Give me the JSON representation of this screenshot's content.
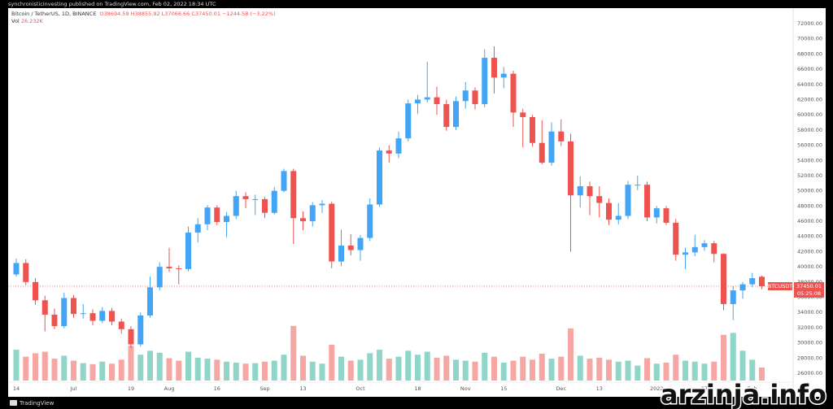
{
  "header": {
    "publisher": "synchronisticinvesting published on TradingView.com, Feb 02, 2022 18:34 UTC"
  },
  "chart_data": {
    "type": "candlestick",
    "symbol": "Bitcoin / TetherUS, 1D, BINANCE",
    "ohlc_prefixes": [
      "O",
      "H",
      "L",
      "C"
    ],
    "change": {
      "value": -1244.58,
      "label": "−1244.58"
    },
    "change_pct": {
      "value": -3.22,
      "label": "(−3.22%)"
    },
    "volume_name": "Vol",
    "volume_last": {
      "value": 26.232,
      "label": "26.232K"
    },
    "ticker": "BTCUSDT",
    "countdown": "05:25:08",
    "categories": [
      "14",
      null,
      null,
      null,
      null,
      null,
      "Jul",
      null,
      null,
      null,
      null,
      null,
      "19",
      null,
      null,
      null,
      "Aug",
      null,
      null,
      null,
      null,
      "16",
      null,
      null,
      null,
      null,
      "Sep",
      null,
      null,
      null,
      "13",
      null,
      null,
      null,
      null,
      null,
      "Oct",
      null,
      null,
      null,
      null,
      null,
      "18",
      null,
      null,
      null,
      null,
      "Nov",
      null,
      null,
      null,
      "15",
      null,
      null,
      null,
      null,
      null,
      "Dec",
      null,
      null,
      null,
      "13",
      null,
      null,
      null,
      null,
      null,
      "2022",
      null,
      null,
      null,
      null,
      "17",
      null,
      null,
      null,
      null,
      "Feb",
      null
    ],
    "candles": [
      [
        39000,
        41100,
        38700,
        40500
      ],
      [
        40500,
        41000,
        37600,
        38000
      ],
      [
        38000,
        38500,
        35000,
        35600
      ],
      [
        35600,
        36200,
        31500,
        33700
      ],
      [
        33700,
        34500,
        31800,
        32200
      ],
      [
        32200,
        36600,
        31900,
        35900
      ],
      [
        35900,
        36300,
        33300,
        33800
      ],
      [
        33800,
        35100,
        33200,
        33900
      ],
      [
        33900,
        34400,
        32300,
        32900
      ],
      [
        32900,
        34700,
        32600,
        34200
      ],
      [
        34200,
        34600,
        32300,
        32800
      ],
      [
        32800,
        33200,
        31200,
        31800
      ],
      [
        31800,
        32200,
        29300,
        29800
      ],
      [
        29800,
        34000,
        29500,
        33600
      ],
      [
        33600,
        38700,
        33300,
        37300
      ],
      [
        37300,
        40600,
        36900,
        40000
      ],
      [
        40000,
        42500,
        39300,
        39800
      ],
      [
        39800,
        40200,
        37700,
        39700
      ],
      [
        39700,
        45300,
        39400,
        44500
      ],
      [
        44500,
        46400,
        43200,
        45600
      ],
      [
        45600,
        48100,
        44800,
        47800
      ],
      [
        47800,
        48100,
        45500,
        45900
      ],
      [
        45900,
        47200,
        43900,
        46700
      ],
      [
        46700,
        50000,
        46300,
        49300
      ],
      [
        49300,
        49800,
        47700,
        48900
      ],
      [
        48900,
        49500,
        46800,
        48900
      ],
      [
        48900,
        49200,
        46400,
        47100
      ],
      [
        47100,
        50500,
        46900,
        50000
      ],
      [
        50000,
        52900,
        49800,
        52600
      ],
      [
        52600,
        52900,
        43000,
        46400
      ],
      [
        46400,
        47300,
        44800,
        46000
      ],
      [
        46000,
        48500,
        45300,
        48100
      ],
      [
        48100,
        48800,
        47100,
        48300
      ],
      [
        48300,
        48600,
        39800,
        40700
      ],
      [
        40700,
        44900,
        40100,
        42800
      ],
      [
        42800,
        44300,
        41500,
        42200
      ],
      [
        42200,
        44200,
        40800,
        43800
      ],
      [
        43800,
        49000,
        43400,
        48200
      ],
      [
        48200,
        55700,
        47900,
        55300
      ],
      [
        55300,
        56000,
        53700,
        54900
      ],
      [
        54900,
        57800,
        54300,
        56900
      ],
      [
        56900,
        62000,
        56500,
        61500
      ],
      [
        61500,
        62600,
        60100,
        62000
      ],
      [
        62000,
        67000,
        61600,
        62300
      ],
      [
        62300,
        63700,
        60000,
        61400
      ],
      [
        61400,
        62000,
        57900,
        58400
      ],
      [
        58400,
        62400,
        58000,
        61800
      ],
      [
        61800,
        64300,
        60800,
        63200
      ],
      [
        63200,
        63600,
        60700,
        61400
      ],
      [
        61400,
        68600,
        61000,
        67500
      ],
      [
        67500,
        69000,
        62800,
        64900
      ],
      [
        64900,
        66300,
        63500,
        65400
      ],
      [
        65400,
        65800,
        58400,
        60300
      ],
      [
        60300,
        60800,
        55700,
        59700
      ],
      [
        59700,
        60000,
        55800,
        56300
      ],
      [
        56300,
        59300,
        53500,
        53700
      ],
      [
        53700,
        59000,
        53300,
        57800
      ],
      [
        57800,
        59400,
        55900,
        56500
      ],
      [
        56500,
        57500,
        42000,
        49400
      ],
      [
        49400,
        51900,
        47800,
        50600
      ],
      [
        50600,
        51200,
        46800,
        49300
      ],
      [
        49300,
        50600,
        46500,
        48400
      ],
      [
        48400,
        49000,
        45500,
        46200
      ],
      [
        46200,
        48400,
        45600,
        46700
      ],
      [
        46700,
        51300,
        46300,
        50800
      ],
      [
        50800,
        52000,
        50100,
        50800
      ],
      [
        50800,
        51200,
        46000,
        46500
      ],
      [
        46500,
        48000,
        45700,
        47700
      ],
      [
        47700,
        48000,
        45500,
        45800
      ],
      [
        45800,
        46300,
        40800,
        41600
      ],
      [
        41600,
        42500,
        39700,
        41900
      ],
      [
        41900,
        44200,
        41400,
        42600
      ],
      [
        42600,
        43500,
        42100,
        43100
      ],
      [
        43100,
        43400,
        40600,
        41700
      ],
      [
        41700,
        41800,
        34300,
        35100
      ],
      [
        35100,
        37500,
        33000,
        36900
      ],
      [
        36900,
        38000,
        35800,
        37700
      ],
      [
        37700,
        39200,
        37300,
        38500
      ],
      [
        38694.59,
        38855.92,
        37066.66,
        37450.01
      ]
    ],
    "volume": [
      62,
      48,
      55,
      58,
      44,
      50,
      40,
      35,
      33,
      38,
      34,
      42,
      70,
      52,
      60,
      56,
      45,
      40,
      58,
      46,
      44,
      42,
      38,
      36,
      34,
      35,
      38,
      40,
      52,
      110,
      50,
      38,
      34,
      72,
      48,
      40,
      42,
      55,
      62,
      44,
      48,
      60,
      52,
      58,
      46,
      50,
      42,
      40,
      38,
      56,
      48,
      36,
      40,
      48,
      42,
      54,
      44,
      48,
      105,
      50,
      44,
      46,
      42,
      38,
      40,
      30,
      45,
      34,
      36,
      52,
      40,
      38,
      34,
      38,
      92,
      96,
      60,
      42,
      26.232
    ],
    "up_color": "#42a5f5",
    "down_color": "#ef5350",
    "volume_up_color": "#8fd6c9",
    "volume_down_color": "#f6a7a4",
    "ylim": [
      25040,
      74030
    ],
    "yticks": [
      {
        "value": 72000,
        "label": "72000.00"
      },
      {
        "value": 70000,
        "label": "70000.00"
      },
      {
        "value": 68000,
        "label": "68000.00"
      },
      {
        "value": 66000,
        "label": "66000.00"
      },
      {
        "value": 64000,
        "label": "64000.00"
      },
      {
        "value": 62000,
        "label": "62000.00"
      },
      {
        "value": 60000,
        "label": "60000.00"
      },
      {
        "value": 58000,
        "label": "58000.00"
      },
      {
        "value": 56000,
        "label": "56000.00"
      },
      {
        "value": 54000,
        "label": "54000.00"
      },
      {
        "value": 52000,
        "label": "52000.00"
      },
      {
        "value": 50000,
        "label": "50000.00"
      },
      {
        "value": 48000,
        "label": "48000.00"
      },
      {
        "value": 46000,
        "label": "46000.00"
      },
      {
        "value": 44000,
        "label": "44000.00"
      },
      {
        "value": 42000,
        "label": "42000.00"
      },
      {
        "value": 40000,
        "label": "40000.00"
      },
      {
        "value": 38000,
        "label": "38000.00"
      },
      {
        "value": 36000,
        "label": "36000.00"
      },
      {
        "value": 34000,
        "label": "34000.00"
      },
      {
        "value": 32000,
        "label": "32000.00"
      },
      {
        "value": 30000,
        "label": "30000.00"
      },
      {
        "value": 28000,
        "label": "28000.00"
      },
      {
        "value": 26000,
        "label": "26000.00"
      }
    ],
    "volume_ylim": [
      0,
      180
    ],
    "grid": false,
    "last_price_line": true
  },
  "footer": {
    "logo": "TradingView",
    "watermark": "arzinja.info"
  }
}
